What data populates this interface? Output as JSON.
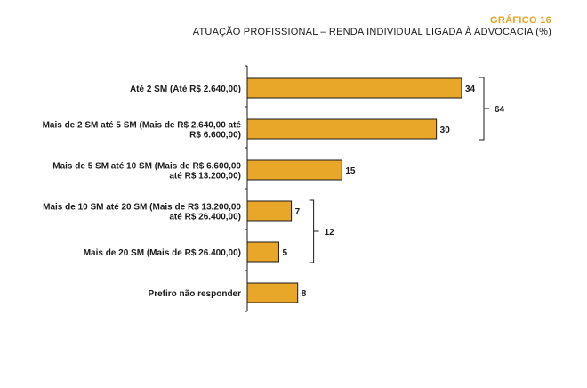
{
  "figure_label": "GRÁFICO 16",
  "colors": {
    "accent": "#E8A020",
    "bar_fill": "#E8A728",
    "bar_stroke": "#1a1a1a",
    "text": "#1a1a1a"
  },
  "chart_data": {
    "type": "bar",
    "orientation": "horizontal",
    "title": "ATUAÇÃO PROFISSIONAL – RENDA INDIVIDUAL LIGADA À ADVOCACIA (%)",
    "categories": [
      [
        "Até 2 SM (Até R$ 2.640,00)"
      ],
      [
        "Mais de 2 SM até 5 SM (Mais de R$ 2.640,00 até",
        "R$ 6.600,00)"
      ],
      [
        "Mais de 5 SM até 10 SM (Mais de R$ 6.600,00",
        "até R$ 13.200,00)"
      ],
      [
        "Mais de 10 SM até 20 SM (Mais de R$ 13.200,00",
        "até R$ 26.400,00)"
      ],
      [
        "Mais de 20 SM (Mais de R$ 26.400,00)"
      ],
      [
        "Prefiro não responder"
      ]
    ],
    "values": [
      34,
      30,
      15,
      7,
      5,
      8
    ],
    "data_labels": [
      "34",
      "30",
      "15",
      "7",
      "5",
      "8"
    ],
    "xlim": [
      0,
      34
    ],
    "grid": false,
    "legend": "none",
    "group_totals": [
      {
        "categories": [
          0,
          1
        ],
        "value": 64,
        "label": "64"
      },
      {
        "categories": [
          3,
          4
        ],
        "value": 12,
        "label": "12"
      }
    ]
  }
}
